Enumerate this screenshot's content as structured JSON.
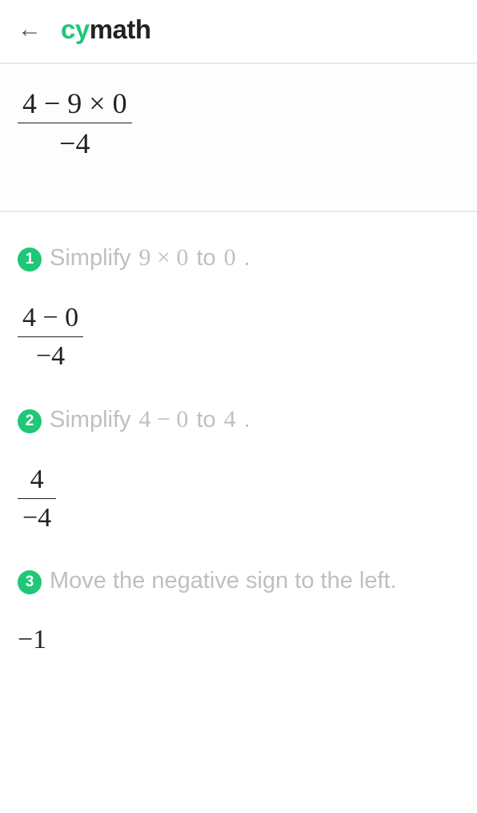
{
  "header": {
    "logo_cy": "cy",
    "logo_math": "math",
    "back_glyph": "←"
  },
  "problem": {
    "numerator": "4 − 9 × 0",
    "denominator": "−4"
  },
  "steps": [
    {
      "num": "1",
      "text_before": "Simplify",
      "math_expr": "9 × 0",
      "text_mid": "to",
      "math_result": "0",
      "text_after": ".",
      "result_numerator": "4 − 0",
      "result_denominator": "−4"
    },
    {
      "num": "2",
      "text_before": "Simplify",
      "math_expr": "4 − 0",
      "text_mid": "to",
      "math_result": "4",
      "text_after": ".",
      "result_numerator": "4",
      "result_denominator": "−4"
    },
    {
      "num": "3",
      "text_before": "Move the negative sign to the left.",
      "math_expr": "",
      "text_mid": "",
      "math_result": "",
      "text_after": "",
      "result_plain": "−1"
    }
  ],
  "colors": {
    "accent": "#1fc777",
    "muted_text": "#bfbfbf",
    "divider": "#e8e8e8",
    "math_text": "#222222"
  }
}
